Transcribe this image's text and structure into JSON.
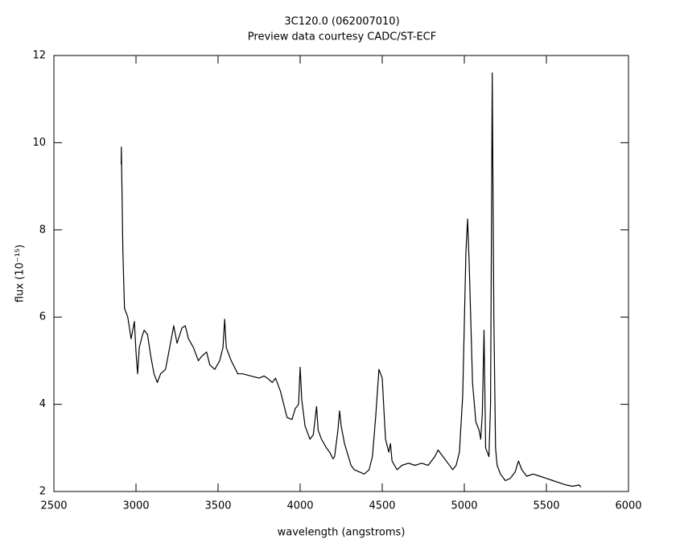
{
  "chart_data": {
    "type": "line",
    "title": "3C120.0 (062007010)",
    "subtitle": "Preview data courtesy CADC/ST-ECF",
    "x_label": "wavelength (angstroms)",
    "y_label": "flux (10⁻¹⁵)",
    "xlim": [
      2500,
      6000
    ],
    "ylim": [
      2,
      12
    ],
    "xticks": [
      2500,
      3000,
      3500,
      4000,
      4500,
      5000,
      5500,
      6000
    ],
    "yticks": [
      2,
      4,
      6,
      8,
      10,
      12
    ],
    "grid": false,
    "series": [
      {
        "color": "#000000",
        "x": [
          2910,
          2911,
          2920,
          2930,
          2950,
          2970,
          2990,
          3000,
          3010,
          3020,
          3040,
          3050,
          3070,
          3090,
          3110,
          3130,
          3150,
          3180,
          3200,
          3230,
          3250,
          3280,
          3300,
          3320,
          3350,
          3380,
          3400,
          3430,
          3450,
          3480,
          3510,
          3530,
          3540,
          3550,
          3580,
          3600,
          3620,
          3650,
          3700,
          3750,
          3780,
          3800,
          3830,
          3850,
          3880,
          3900,
          3920,
          3950,
          3970,
          3990,
          4000,
          4010,
          4030,
          4060,
          4080,
          4100,
          4110,
          4130,
          4160,
          4180,
          4200,
          4210,
          4230,
          4240,
          4250,
          4270,
          4290,
          4310,
          4330,
          4360,
          4390,
          4420,
          4440,
          4460,
          4480,
          4500,
          4510,
          4520,
          4540,
          4550,
          4560,
          4590,
          4620,
          4660,
          4700,
          4740,
          4780,
          4820,
          4840,
          4870,
          4900,
          4930,
          4950,
          4970,
          4990,
          5010,
          5020,
          5030,
          5050,
          5070,
          5090,
          5100,
          5110,
          5120,
          5130,
          5150,
          5160,
          5170,
          5180,
          5190,
          5200,
          5220,
          5250,
          5280,
          5310,
          5330,
          5350,
          5380,
          5420,
          5460,
          5500,
          5540,
          5580,
          5620,
          5660,
          5700,
          5710
        ],
        "values": [
          9.5,
          9.9,
          7.5,
          6.2,
          6.0,
          5.5,
          5.9,
          5.2,
          4.7,
          5.3,
          5.6,
          5.7,
          5.6,
          5.1,
          4.7,
          4.5,
          4.7,
          4.8,
          5.2,
          5.8,
          5.4,
          5.75,
          5.8,
          5.5,
          5.3,
          5.0,
          5.1,
          5.2,
          4.9,
          4.8,
          5.0,
          5.3,
          5.95,
          5.3,
          5.0,
          4.85,
          4.7,
          4.7,
          4.65,
          4.6,
          4.65,
          4.6,
          4.5,
          4.6,
          4.3,
          4.0,
          3.7,
          3.65,
          3.9,
          4.0,
          4.85,
          4.1,
          3.5,
          3.2,
          3.3,
          3.95,
          3.4,
          3.2,
          3.0,
          2.9,
          2.75,
          2.8,
          3.4,
          3.85,
          3.5,
          3.1,
          2.85,
          2.6,
          2.5,
          2.45,
          2.4,
          2.5,
          2.8,
          3.7,
          4.8,
          4.6,
          3.9,
          3.2,
          2.9,
          3.1,
          2.7,
          2.5,
          2.6,
          2.65,
          2.6,
          2.65,
          2.6,
          2.8,
          2.95,
          2.8,
          2.65,
          2.5,
          2.6,
          2.9,
          4.2,
          7.5,
          8.25,
          7.2,
          4.5,
          3.6,
          3.4,
          3.2,
          3.8,
          5.7,
          3.0,
          2.8,
          4.0,
          11.6,
          6.0,
          3.0,
          2.6,
          2.4,
          2.25,
          2.3,
          2.45,
          2.7,
          2.5,
          2.35,
          2.4,
          2.35,
          2.3,
          2.25,
          2.2,
          2.15,
          2.12,
          2.15,
          2.1
        ]
      }
    ]
  }
}
